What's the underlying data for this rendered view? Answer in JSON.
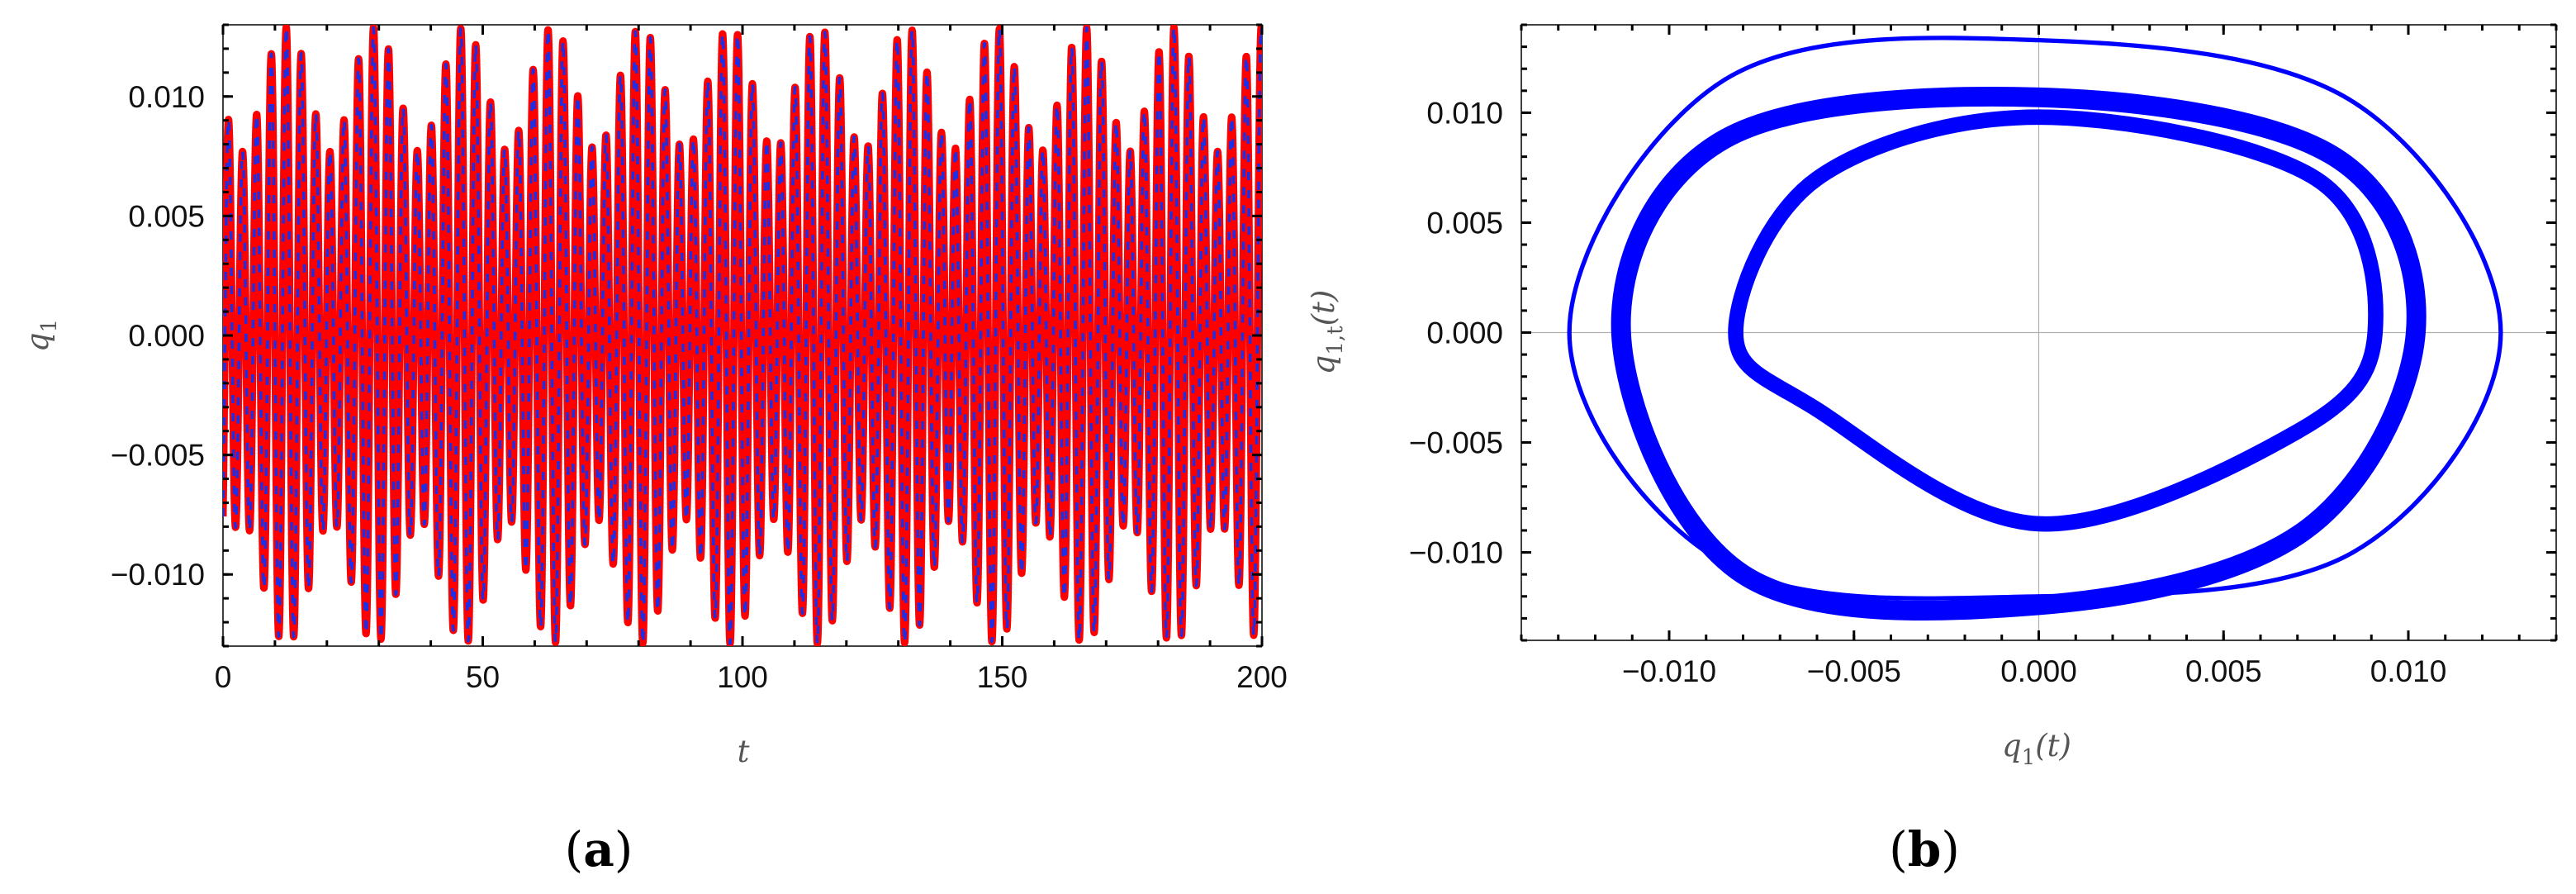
{
  "colors": {
    "reference_series": "#ff0000",
    "approx_series": "#1a2fe6",
    "phase_curve": "#0000ff",
    "frame": "#000000",
    "gridline": "#b0b0b0"
  },
  "chart_data": [
    {
      "type": "line",
      "panel_label": {
        "open": "(",
        "letter": "a",
        "close": ")"
      },
      "xlabel": "t",
      "ylabel": "q1",
      "xlim": [
        0,
        200
      ],
      "ylim": [
        -0.013,
        0.013
      ],
      "x_ticks": [
        0,
        50,
        100,
        150,
        200
      ],
      "x_tick_labels": [
        "0",
        "50",
        "100",
        "150",
        "200"
      ],
      "y_ticks": [
        -0.01,
        -0.005,
        0.0,
        0.005,
        0.01
      ],
      "y_tick_labels": [
        "−0.010",
        "−0.005",
        "0.000",
        "0.005",
        "0.010"
      ],
      "grid": "axes-only",
      "series": [
        {
          "style": "solid-thick",
          "color": "#ff0000",
          "model": {
            "type": "sum_of_sines",
            "components": [
              {
                "amp": 0.0103,
                "omega": 2.243,
                "phase": -0.6
              },
              {
                "amp": 0.0026,
                "omega": 1.875,
                "phase": -2.4
              }
            ]
          },
          "t_start": 0,
          "t_end": 200
        },
        {
          "style": "dashed",
          "color": "#1a2fe6",
          "model": {
            "type": "sum_of_sines",
            "components": [
              {
                "amp": 0.0103,
                "omega": 2.243,
                "phase": -0.6
              },
              {
                "amp": 0.0026,
                "omega": 1.875,
                "phase": -2.4
              }
            ]
          },
          "t_start": 0,
          "t_end": 200
        }
      ]
    },
    {
      "type": "line",
      "panel_label": {
        "open": "(",
        "letter": "b",
        "close": ")"
      },
      "xlabel": "q1(t)",
      "ylabel": "q1,t(t)",
      "xlim": [
        -0.014,
        0.014
      ],
      "ylim": [
        -0.014,
        0.014
      ],
      "x_ticks": [
        -0.01,
        -0.005,
        0.0,
        0.005,
        0.01
      ],
      "x_tick_labels": [
        "−0.010",
        "−0.005",
        "0.000",
        "0.005",
        "0.010"
      ],
      "y_ticks": [
        -0.01,
        -0.005,
        0.0,
        0.005,
        0.01
      ],
      "y_tick_labels": [
        "−0.010",
        "−0.005",
        "0.000",
        "0.005",
        "0.010"
      ],
      "grid": "axes-only",
      "series": [
        {
          "style": "solid",
          "color": "#0000ff",
          "orbits": [
            {
              "x": [
                -0.0127,
                -0.0085,
                0.0,
                0.0085,
                0.0125,
                0.0085,
                0.0,
                -0.0085
              ],
              "y": [
                0.0,
                0.0115,
                0.0133,
                0.0105,
                0.0,
                -0.01,
                -0.012,
                -0.0105
              ],
              "width": 0.0002
            },
            {
              "x": [
                -0.0113,
                -0.0085,
                0.0,
                0.008,
                0.0102,
                0.0072,
                0.0,
                -0.008
              ],
              "y": [
                0.0,
                0.0088,
                0.0107,
                0.008,
                0.0,
                -0.009,
                -0.0124,
                -0.011
              ],
              "width": 0.0009
            },
            {
              "x": [
                -0.0082,
                -0.006,
                0.0,
                0.0075,
                0.0091,
                0.007,
                0.0,
                -0.006
              ],
              "y": [
                0.0,
                0.007,
                0.0098,
                0.007,
                0.0,
                -0.0045,
                -0.0087,
                -0.0035
              ],
              "width": 0.0007
            }
          ]
        }
      ]
    }
  ]
}
